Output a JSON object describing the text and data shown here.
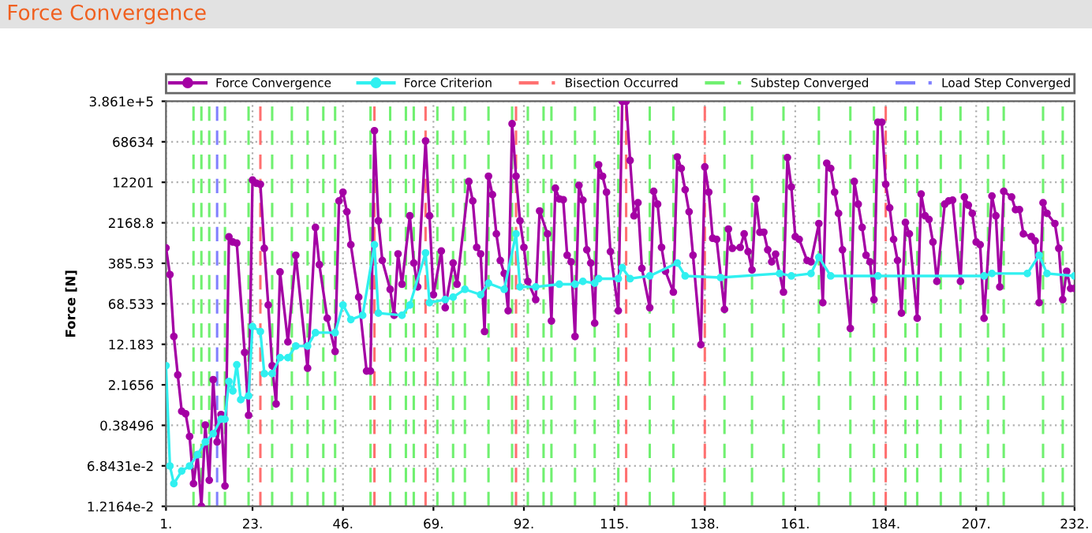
{
  "chart_data": {
    "type": "line",
    "title": "Force Convergence",
    "ylabel": "Force [N]",
    "log": "y",
    "grid": true,
    "legend": "top",
    "marker": "circle",
    "line_style": "solid",
    "xlim": [
      1,
      232
    ],
    "xticks": [
      {
        "value": 1,
        "label": "1."
      },
      {
        "value": 23,
        "label": "23."
      },
      {
        "value": 46,
        "label": "46."
      },
      {
        "value": 69,
        "label": "69."
      },
      {
        "value": 92,
        "label": "92."
      },
      {
        "value": 115,
        "label": "115."
      },
      {
        "value": 138,
        "label": "138."
      },
      {
        "value": 161,
        "label": "161."
      },
      {
        "value": 184,
        "label": "184."
      },
      {
        "value": 207,
        "label": "207."
      },
      {
        "value": 232,
        "label": "232."
      }
    ],
    "ylim": [
      0.012164,
      386100
    ],
    "yticks": [
      {
        "value": 0.012164,
        "label": "1.2164e-2"
      },
      {
        "value": 0.068431,
        "label": "6.8431e-2"
      },
      0.38496,
      2.1656,
      12.183,
      68.533,
      385.53,
      2168.8,
      12201,
      68634,
      {
        "value": 386100,
        "label": "3.861e+5"
      }
    ],
    "series": [
      {
        "name": "Force Convergence",
        "color": "#a400a4",
        "x": [
          1,
          2,
          3,
          4,
          5,
          6,
          7,
          8,
          9,
          10,
          11,
          12,
          13,
          14,
          15,
          16,
          17,
          18,
          19,
          21,
          22,
          23,
          24,
          25,
          26,
          27,
          28,
          29,
          30,
          32,
          34,
          37,
          39,
          40,
          42,
          44,
          45,
          46,
          47,
          48,
          50,
          52,
          53,
          54,
          55,
          56,
          58,
          59,
          60,
          61,
          63,
          64,
          65,
          67,
          68,
          69,
          71,
          72,
          74,
          75,
          78,
          79,
          80,
          81,
          82,
          83,
          84,
          85,
          86,
          87,
          88,
          89,
          90,
          91,
          92,
          93,
          95,
          96,
          98,
          99,
          100,
          101,
          102,
          103,
          104,
          105,
          106,
          107,
          108,
          109,
          110,
          111,
          112,
          113,
          114,
          116,
          117,
          118,
          119,
          120,
          121,
          122,
          124,
          125,
          126,
          127,
          128,
          130,
          131,
          132,
          133,
          134,
          135,
          137,
          138,
          139,
          140,
          141,
          143,
          144,
          145,
          147,
          148,
          149,
          150,
          151,
          152,
          153,
          154,
          155,
          156,
          158,
          159,
          160,
          161,
          162,
          164,
          165,
          167,
          168,
          169,
          170,
          171,
          172,
          173,
          175,
          176,
          177,
          178,
          179,
          180,
          181,
          182,
          183,
          184,
          185,
          186,
          187,
          188,
          189,
          190,
          192,
          193,
          194,
          195,
          196,
          197,
          199,
          200,
          201,
          203,
          204,
          205,
          206,
          207,
          208,
          209,
          211,
          212,
          213,
          214,
          216,
          217,
          218,
          219,
          221,
          222,
          223,
          224,
          225,
          227,
          228,
          229,
          230,
          231,
          232
        ],
        "values": [
          745,
          238,
          17,
          3.3,
          0.7,
          0.63,
          0.24,
          0.032,
          0.11,
          0.0122,
          0.39,
          0.037,
          2.7,
          0.19,
          0.61,
          0.029,
          1190,
          955,
          910,
          8.6,
          0.59,
          13400,
          11700,
          11200,
          730,
          65,
          4.9,
          0.96,
          266,
          13.5,
          543,
          4.4,
          1780,
          363,
          37,
          9.0,
          5500,
          8000,
          3470,
          850,
          91,
          3.9,
          3.9,
          110000,
          2360,
          435,
          127,
          42,
          575,
          158,
          2920,
          390,
          141,
          71000,
          2920,
          101,
          650,
          58,
          390,
          158,
          12600,
          5500,
          760,
          575,
          21,
          15800,
          7200,
          1350,
          435,
          250,
          51,
          148000,
          15800,
          2360,
          760,
          178,
          82,
          3600,
          1350,
          33,
          9500,
          6000,
          5800,
          543,
          410,
          17,
          10700,
          5700,
          685,
          390,
          30,
          25700,
          15800,
          8000,
          635,
          51,
          386100,
          386100,
          31000,
          2920,
          5100,
          310,
          58,
          8300,
          4800,
          760,
          275,
          113,
          36000,
          22000,
          8900,
          3470,
          543,
          12,
          23500,
          8000,
          1120,
          1070,
          54,
          1660,
          730,
          760,
          1350,
          635,
          290,
          6000,
          1450,
          1450,
          685,
          410,
          570,
          113,
          35000,
          10000,
          1200,
          1070,
          435,
          410,
          2100,
          72,
          27500,
          22000,
          8000,
          3240,
          685,
          24,
          12600,
          4800,
          1780,
          543,
          410,
          82,
          158000,
          158000,
          11200,
          4100,
          1070,
          435,
          46,
          2200,
          1350,
          37,
          7400,
          2920,
          2500,
          955,
          178,
          4800,
          5500,
          5700,
          178,
          6500,
          4600,
          3240,
          955,
          850,
          37,
          6800,
          2920,
          141,
          8300,
          6500,
          3800,
          3800,
          1350,
          1200,
          1000,
          72,
          5100,
          3240,
          2100,
          730,
          82,
          275,
          132,
          132
        ]
      },
      {
        "name": "Force Criterion",
        "color": "#30f0f0",
        "x": [
          1,
          2,
          3,
          5,
          7,
          9,
          11,
          13,
          15,
          16,
          17,
          18,
          19,
          20,
          22,
          23,
          25,
          26,
          28,
          30,
          32,
          34,
          37,
          39,
          44,
          46,
          48,
          51,
          54,
          55,
          61,
          63,
          67,
          68,
          72,
          74,
          77,
          81,
          83,
          87,
          90,
          91,
          95,
          101,
          105,
          107,
          110,
          111,
          116,
          117,
          119,
          124,
          131,
          133,
          142,
          157,
          160,
          165,
          167,
          170,
          182,
          209,
          211,
          220,
          223,
          225,
          232
        ],
        "values": [
          4.9,
          0.068,
          0.032,
          0.055,
          0.068,
          0.11,
          0.19,
          0.27,
          0.5,
          0.5,
          2.5,
          1.67,
          5.1,
          1.15,
          1.35,
          26,
          21,
          3.5,
          3.5,
          6.9,
          6.9,
          11.3,
          11.3,
          20,
          20,
          65,
          35,
          42,
          850,
          46,
          42,
          65,
          600,
          72,
          82,
          91,
          127,
          101,
          165,
          127,
          1350,
          141,
          141,
          158,
          158,
          178,
          165,
          200,
          200,
          320,
          200,
          225,
          390,
          225,
          210,
          250,
          225,
          250,
          500,
          225,
          225,
          225,
          250,
          250,
          543,
          250,
          225
        ]
      }
    ],
    "ref_lines": [
      {
        "axis": "x",
        "value": 25,
        "label": "Bisection Occurred",
        "color": "#ff7070",
        "line_style": "dashed"
      },
      {
        "axis": "x",
        "value": 54,
        "color": "#ff7070",
        "line_style": "dashed"
      },
      {
        "axis": "x",
        "value": 67,
        "color": "#ff7070",
        "line_style": "dashed"
      },
      {
        "axis": "x",
        "value": 90,
        "color": "#ff7070",
        "line_style": "dashed"
      },
      {
        "axis": "x",
        "value": 118,
        "color": "#ff7070",
        "line_style": "dashed"
      },
      {
        "axis": "x",
        "value": 138,
        "color": "#ff7070",
        "line_style": "dashed"
      },
      {
        "axis": "x",
        "value": 184,
        "color": "#ff7070",
        "line_style": "dashed"
      },
      {
        "axis": "x",
        "value": 8,
        "label": "Substep Converged",
        "color": "#70f070",
        "line_style": "dashed"
      },
      {
        "axis": "x",
        "value": 10,
        "color": "#70f070",
        "line_style": "dashed"
      },
      {
        "axis": "x",
        "value": 12,
        "color": "#70f070",
        "line_style": "dashed"
      },
      {
        "axis": "x",
        "value": 16,
        "color": "#70f070",
        "line_style": "dashed"
      },
      {
        "axis": "x",
        "value": 22,
        "color": "#70f070",
        "line_style": "dashed"
      },
      {
        "axis": "x",
        "value": 28,
        "color": "#70f070",
        "line_style": "dashed"
      },
      {
        "axis": "x",
        "value": 33,
        "color": "#70f070",
        "line_style": "dashed"
      },
      {
        "axis": "x",
        "value": 37,
        "color": "#70f070",
        "line_style": "dashed"
      },
      {
        "axis": "x",
        "value": 41,
        "color": "#70f070",
        "line_style": "dashed"
      },
      {
        "axis": "x",
        "value": 44,
        "color": "#70f070",
        "line_style": "dashed"
      },
      {
        "axis": "x",
        "value": 53,
        "color": "#70f070",
        "line_style": "dashed"
      },
      {
        "axis": "x",
        "value": 58,
        "color": "#70f070",
        "line_style": "dashed"
      },
      {
        "axis": "x",
        "value": 62,
        "color": "#70f070",
        "line_style": "dashed"
      },
      {
        "axis": "x",
        "value": 64,
        "color": "#70f070",
        "line_style": "dashed"
      },
      {
        "axis": "x",
        "value": 70,
        "color": "#70f070",
        "line_style": "dashed"
      },
      {
        "axis": "x",
        "value": 74,
        "color": "#70f070",
        "line_style": "dashed"
      },
      {
        "axis": "x",
        "value": 77,
        "color": "#70f070",
        "line_style": "dashed"
      },
      {
        "axis": "x",
        "value": 83,
        "color": "#70f070",
        "line_style": "dashed"
      },
      {
        "axis": "x",
        "value": 89,
        "color": "#70f070",
        "line_style": "dashed"
      },
      {
        "axis": "x",
        "value": 93,
        "color": "#70f070",
        "line_style": "dashed"
      },
      {
        "axis": "x",
        "value": 97,
        "color": "#70f070",
        "line_style": "dashed"
      },
      {
        "axis": "x",
        "value": 99,
        "color": "#70f070",
        "line_style": "dashed"
      },
      {
        "axis": "x",
        "value": 105,
        "color": "#70f070",
        "line_style": "dashed"
      },
      {
        "axis": "x",
        "value": 110,
        "color": "#70f070",
        "line_style": "dashed"
      },
      {
        "axis": "x",
        "value": 116,
        "color": "#70f070",
        "line_style": "dashed"
      },
      {
        "axis": "x",
        "value": 124,
        "color": "#70f070",
        "line_style": "dashed"
      },
      {
        "axis": "x",
        "value": 130,
        "color": "#70f070",
        "line_style": "dashed"
      },
      {
        "axis": "x",
        "value": 143,
        "color": "#70f070",
        "line_style": "dashed"
      },
      {
        "axis": "x",
        "value": 150,
        "color": "#70f070",
        "line_style": "dashed"
      },
      {
        "axis": "x",
        "value": 158,
        "color": "#70f070",
        "line_style": "dashed"
      },
      {
        "axis": "x",
        "value": 167,
        "color": "#70f070",
        "line_style": "dashed"
      },
      {
        "axis": "x",
        "value": 175,
        "color": "#70f070",
        "line_style": "dashed"
      },
      {
        "axis": "x",
        "value": 181,
        "color": "#70f070",
        "line_style": "dashed"
      },
      {
        "axis": "x",
        "value": 189,
        "color": "#70f070",
        "line_style": "dashed"
      },
      {
        "axis": "x",
        "value": 192,
        "color": "#70f070",
        "line_style": "dashed"
      },
      {
        "axis": "x",
        "value": 198,
        "color": "#70f070",
        "line_style": "dashed"
      },
      {
        "axis": "x",
        "value": 203,
        "color": "#70f070",
        "line_style": "dashed"
      },
      {
        "axis": "x",
        "value": 210,
        "color": "#70f070",
        "line_style": "dashed"
      },
      {
        "axis": "x",
        "value": 214,
        "color": "#70f070",
        "line_style": "dashed"
      },
      {
        "axis": "x",
        "value": 224,
        "color": "#70f070",
        "line_style": "dashed"
      },
      {
        "axis": "x",
        "value": 229,
        "color": "#70f070",
        "line_style": "dashed"
      },
      {
        "axis": "x",
        "value": 14,
        "label": "Load Step Converged",
        "color": "#8080ff",
        "line_style": "dashed"
      }
    ]
  }
}
